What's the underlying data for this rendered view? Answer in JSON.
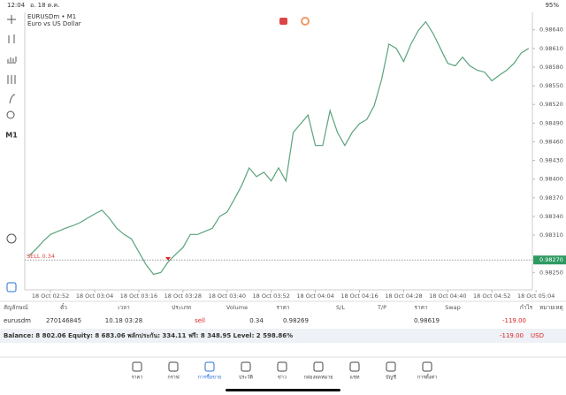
{
  "status_bar": {
    "time": "12:04",
    "date": "อ. 18 ต.ค.",
    "battery": "95%"
  },
  "toolbar": {
    "timeframe": "M1"
  },
  "chart_data": {
    "type": "line",
    "title": "EURUSDm • M1",
    "subtitle": "Euro vs US Dollar",
    "series": [
      {
        "name": "EURUSDm",
        "color": "#5aa37c",
        "values": [
          0.98276,
          0.98287,
          0.983,
          0.98311,
          0.98316,
          0.98321,
          0.98325,
          0.9833,
          0.98337,
          0.98344,
          0.9835,
          0.98337,
          0.98321,
          0.98311,
          0.98304,
          0.98283,
          0.98262,
          0.98247,
          0.9825,
          0.98267,
          0.98279,
          0.9829,
          0.98311,
          0.98311,
          0.98316,
          0.98321,
          0.9834,
          0.98347,
          0.98368,
          0.9839,
          0.98418,
          0.98404,
          0.98411,
          0.98397,
          0.98418,
          0.98397,
          0.98475,
          0.98489,
          0.98503,
          0.98454,
          0.98454,
          0.9851,
          0.98475,
          0.98454,
          0.98475,
          0.98489,
          0.98496,
          0.98518,
          0.9856,
          0.98617,
          0.9861,
          0.98589,
          0.98617,
          0.98639,
          0.98653,
          0.98634,
          0.9861,
          0.98586,
          0.98582,
          0.98596,
          0.98582,
          0.98575,
          0.98572,
          0.98558,
          0.98567,
          0.98575,
          0.98586,
          0.98603,
          0.9861
        ]
      }
    ],
    "xlim": [
      -0.5,
      68.5
    ],
    "xticks": [
      {
        "value": 3,
        "label": "18 Oct 02:52"
      },
      {
        "value": 9,
        "label": "18 Oct 03:04"
      },
      {
        "value": 15,
        "label": "18 Oct 03:16"
      },
      {
        "value": 21,
        "label": "18 Oct 03:28"
      },
      {
        "value": 27,
        "label": "18 Oct 03:40"
      },
      {
        "value": 33,
        "label": "18 Oct 03:52"
      },
      {
        "value": 39,
        "label": "18 Oct 04:04"
      },
      {
        "value": 45,
        "label": "18 Oct 04:16"
      },
      {
        "value": 51,
        "label": "18 Oct 04:28"
      },
      {
        "value": 57,
        "label": "18 Oct 04:40"
      },
      {
        "value": 63,
        "label": "18 Oct 04:52"
      },
      {
        "value": 69,
        "label": "18 Oct 05:04"
      }
    ],
    "ylim": [
      0.98222,
      0.98668
    ],
    "yticks": [
      {
        "value": 0.9864,
        "label": "0.98640"
      },
      {
        "value": 0.9861,
        "label": "0.98610"
      },
      {
        "value": 0.9858,
        "label": "0.98580"
      },
      {
        "value": 0.9855,
        "label": "0.98550"
      },
      {
        "value": 0.9852,
        "label": "0.98520"
      },
      {
        "value": 0.9849,
        "label": "0.98490"
      },
      {
        "value": 0.9846,
        "label": "0.98460"
      },
      {
        "value": 0.9843,
        "label": "0.98430"
      },
      {
        "value": 0.984,
        "label": "0.98400"
      },
      {
        "value": 0.9837,
        "label": "0.98370"
      },
      {
        "value": 0.9834,
        "label": "0.98340"
      },
      {
        "value": 0.9831,
        "label": "0.98310"
      },
      {
        "value": 0.9825,
        "label": "0.98250"
      }
    ],
    "sell_line": {
      "label": "SELL 0.34",
      "value": 0.9827,
      "value_label": "0.98270"
    },
    "entry_price": 0.98269
  },
  "table": {
    "headers": [
      "สัญลักษณ์",
      "ตั๋ว",
      "เวลา",
      "ประเภท",
      "Volume",
      "ราคา",
      "S/L",
      "T/P",
      "ราคา",
      "Swap",
      "กำไร",
      "หมายเหตุ"
    ],
    "row": {
      "symbol": "eurusdm",
      "ticket": "270146845",
      "time": "10.18 03:28",
      "type": "sell",
      "volume": "0.34",
      "price": "0.98269",
      "current_price": "0.98619",
      "profit": "-119.00"
    },
    "balance": "Balance: 8 802.06 Equity: 8 683.06 พลักประกัน: 334.11 ฟรี: 8 348.95 Level: 2 598.86%",
    "total": "-119.00",
    "currency": "USD"
  },
  "nav": [
    "ราคา",
    "กราฟ",
    "การซื้อขาย",
    "ประวัติ",
    "ข่าว",
    "กล่องจดหมาย",
    "แชท",
    "บัญชี",
    "การตั้งค่า"
  ]
}
